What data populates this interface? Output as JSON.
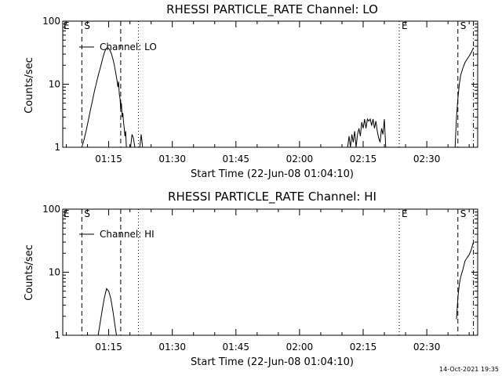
{
  "chart_data": [
    {
      "type": "line",
      "title": "RHESSI PARTICLE_RATE Channel: LO",
      "xlabel": "Start Time (22-Jun-08 01:04:10)",
      "ylabel": "Counts/sec",
      "x_ticks": [
        "01:15",
        "01:30",
        "01:45",
        "02:00",
        "02:15",
        "02:30"
      ],
      "y_ticks": [
        "1",
        "10",
        "100"
      ],
      "y_scale": "log",
      "ylim": [
        1,
        100
      ],
      "xlim": [
        "01:04:10",
        "02:42:00"
      ],
      "legend": "Channel: LO",
      "markers": [
        {
          "time": "01:08:40",
          "style": "dashed",
          "label": "S"
        },
        {
          "time": "01:17:50",
          "style": "dashed",
          "label": ""
        },
        {
          "time": "01:22:00",
          "style": "dotted",
          "label": ""
        },
        {
          "time": "02:23:30",
          "style": "dotted",
          "label": "E"
        },
        {
          "time": "02:37:20",
          "style": "dashed",
          "label": "S"
        },
        {
          "time": "02:41:00",
          "style": "dashdot",
          "label": ""
        }
      ],
      "extra_labels": [
        {
          "time": "01:04:20",
          "text": "E"
        }
      ],
      "series": [
        {
          "segments": [
            {
              "x": [
                "01:08:40",
                "01:09:10",
                "01:09:40",
                "01:10:10",
                "01:10:40",
                "01:11:10",
                "01:11:40",
                "01:12:10",
                "01:12:40",
                "01:13:00",
                "01:13:20",
                "01:13:40",
                "01:14:00",
                "01:14:20",
                "01:14:40",
                "01:15:00",
                "01:15:20",
                "01:15:40",
                "01:16:00",
                "01:16:20",
                "01:16:40",
                "01:17:00",
                "01:17:10",
                "01:17:20",
                "01:17:30",
                "01:17:40",
                "01:17:50",
                "01:18:00",
                "01:18:10",
                "01:18:20",
                "01:18:30",
                "01:18:40",
                "01:18:50",
                "01:19:00",
                "01:19:10"
              ],
              "y": [
                1.0,
                1.3,
                1.8,
                2.6,
                3.8,
                5.5,
                8,
                11,
                15,
                18,
                22,
                27,
                32,
                36,
                38,
                37,
                34,
                30,
                25,
                20,
                15,
                11,
                9,
                11,
                7,
                6,
                4,
                5,
                3,
                3.5,
                2.5,
                2,
                1.5,
                1.8,
                1.0
              ]
            },
            {
              "x": [
                "01:20:10",
                "01:20:30",
                "01:20:50",
                "01:21:10"
              ],
              "y": [
                1.0,
                1.6,
                1.4,
                1.0
              ]
            },
            {
              "x": [
                "01:22:20",
                "01:22:40",
                "01:23:00"
              ],
              "y": [
                1.0,
                1.6,
                1.0
              ]
            },
            {
              "x": [
                "02:11:20",
                "02:11:40",
                "02:12:00",
                "02:12:20",
                "02:12:40",
                "02:13:00",
                "02:13:20",
                "02:13:40",
                "02:14:00",
                "02:14:20",
                "02:14:40",
                "02:15:00",
                "02:15:20",
                "02:15:40",
                "02:16:00",
                "02:16:20",
                "02:16:40",
                "02:17:00",
                "02:17:20",
                "02:17:40",
                "02:18:00",
                "02:18:20",
                "02:18:40",
                "02:19:00",
                "02:19:20",
                "02:19:40",
                "02:20:00",
                "02:20:20"
              ],
              "y": [
                1.0,
                1.5,
                1.0,
                1.6,
                1.2,
                1.8,
                1.0,
                1.6,
                2.0,
                1.5,
                2.5,
                2.0,
                2.8,
                2.0,
                2.8,
                2.6,
                2.8,
                2.2,
                2.8,
                2.0,
                2.6,
                1.8,
                1.4,
                1.2,
                2.0,
                1.6,
                2.8,
                1.0
              ]
            },
            {
              "x": [
                "02:36:40",
                "02:37:00",
                "02:37:20",
                "02:37:40",
                "02:38:00",
                "02:38:30",
                "02:39:00",
                "02:39:30",
                "02:40:00",
                "02:40:30",
                "02:41:00"
              ],
              "y": [
                1.0,
                3.0,
                6.0,
                10,
                14,
                18,
                22,
                25,
                28,
                32,
                38
              ]
            }
          ]
        }
      ]
    },
    {
      "type": "line",
      "title": "RHESSI PARTICLE_RATE Channel: HI",
      "xlabel": "Start Time (22-Jun-08 01:04:10)",
      "ylabel": "Counts/sec",
      "x_ticks": [
        "01:15",
        "01:30",
        "01:45",
        "02:00",
        "02:15",
        "02:30"
      ],
      "y_ticks": [
        "1",
        "10",
        "100"
      ],
      "y_scale": "log",
      "ylim": [
        1,
        100
      ],
      "xlim": [
        "01:04:10",
        "02:42:00"
      ],
      "legend": "Channel: HI",
      "markers": [
        {
          "time": "01:08:40",
          "style": "dashed",
          "label": "S"
        },
        {
          "time": "01:17:50",
          "style": "dashed",
          "label": ""
        },
        {
          "time": "01:22:00",
          "style": "dotted",
          "label": ""
        },
        {
          "time": "02:23:30",
          "style": "dotted",
          "label": "E"
        },
        {
          "time": "02:37:20",
          "style": "dashed",
          "label": "S"
        },
        {
          "time": "02:41:00",
          "style": "dashdot",
          "label": ""
        }
      ],
      "extra_labels": [
        {
          "time": "01:04:20",
          "text": "E"
        }
      ],
      "series": [
        {
          "segments": [
            {
              "x": [
                "01:12:30",
                "01:13:00",
                "01:13:30",
                "01:14:00",
                "01:14:30",
                "01:15:00",
                "01:15:30",
                "01:16:00",
                "01:16:30",
                "01:16:50"
              ],
              "y": [
                1.0,
                1.6,
                2.6,
                4.0,
                5.5,
                5.0,
                3.8,
                2.4,
                1.4,
                1.0
              ]
            },
            {
              "x": [
                "02:37:00",
                "02:37:20",
                "02:37:40",
                "02:38:00",
                "02:38:30",
                "02:39:00",
                "02:39:30",
                "02:40:00",
                "02:40:30",
                "02:41:00"
              ],
              "y": [
                1.8,
                4.0,
                6.5,
                8.5,
                11,
                15,
                17,
                19,
                23,
                30
              ]
            }
          ]
        }
      ]
    }
  ],
  "footer": {
    "timestamp": "14-Oct-2021 19:35"
  }
}
